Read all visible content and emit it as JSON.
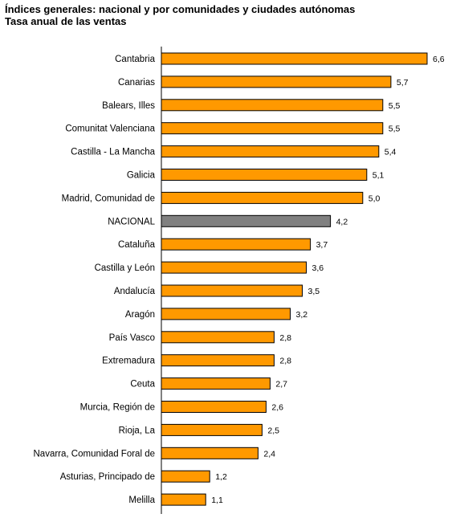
{
  "title": "Índices generales: nacional y por comunidades y ciudades autónomas",
  "subtitle": "Tasa anual de las ventas",
  "colors": {
    "bar": "#FF9900",
    "highlight": "#808080",
    "stroke": "#000000"
  },
  "chart_data": {
    "type": "bar",
    "orientation": "horizontal",
    "title": "Índices generales: nacional y por comunidades y ciudades autónomas",
    "subtitle": "Tasa anual de las ventas",
    "xlim": [
      0,
      6.6
    ],
    "grid": false,
    "highlight_category": "NACIONAL",
    "categories": [
      "Cantabria",
      "Canarias",
      "Balears, Illes",
      "Comunitat Valenciana",
      "Castilla - La Mancha",
      "Galicia",
      "Madrid, Comunidad de",
      "NACIONAL",
      "Cataluña",
      "Castilla y León",
      "Andalucía",
      "Aragón",
      "País Vasco",
      "Extremadura",
      "Ceuta",
      "Murcia, Región de",
      "Rioja, La",
      "Navarra, Comunidad Foral de",
      "Asturias, Principado de",
      "Melilla"
    ],
    "values": [
      6.6,
      5.7,
      5.5,
      5.5,
      5.4,
      5.1,
      5.0,
      4.2,
      3.7,
      3.6,
      3.5,
      3.2,
      2.8,
      2.8,
      2.7,
      2.6,
      2.5,
      2.4,
      1.2,
      1.1
    ],
    "value_labels": [
      "6,6",
      "5,7",
      "5,5",
      "5,5",
      "5,4",
      "5,1",
      "5,0",
      "4,2",
      "3,7",
      "3,6",
      "3,5",
      "3,2",
      "2,8",
      "2,8",
      "2,7",
      "2,6",
      "2,5",
      "2,4",
      "1,2",
      "1,1"
    ]
  }
}
